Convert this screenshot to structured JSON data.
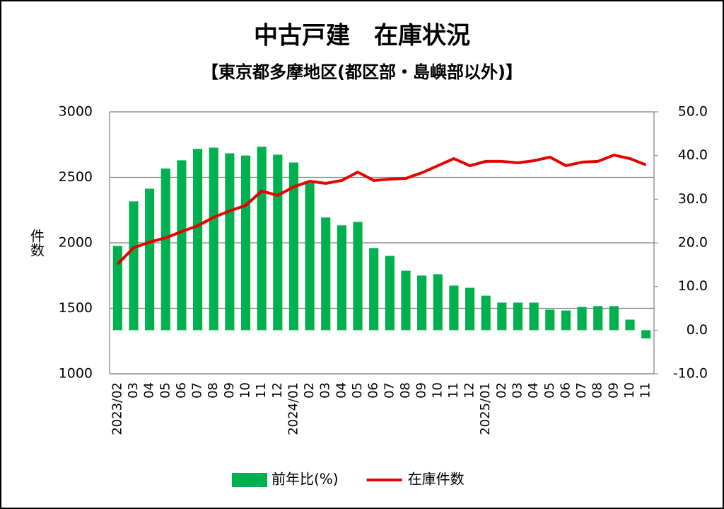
{
  "chart_data": {
    "type": "combo",
    "title": "中古戸建　在庫状況",
    "subtitle": "【東京都多摩地区(都区部・島嶼部以外)】",
    "ylabel": "件数",
    "categories": [
      "2023/02",
      "03",
      "04",
      "05",
      "06",
      "07",
      "08",
      "09",
      "10",
      "11",
      "12",
      "2024/01",
      "02",
      "03",
      "04",
      "05",
      "06",
      "07",
      "08",
      "09",
      "10",
      "11",
      "12",
      "2025/01",
      "02",
      "03",
      "04",
      "05",
      "06",
      "07",
      "08",
      "09",
      "10",
      "11"
    ],
    "series": [
      {
        "name": "前年比(%)",
        "type": "bar",
        "axis": "y2",
        "color": "#00b050",
        "values": [
          19.3,
          29.5,
          32.4,
          37.0,
          38.9,
          41.5,
          41.8,
          40.5,
          40.0,
          42.0,
          40.2,
          38.4,
          33.7,
          25.8,
          24.0,
          24.8,
          18.8,
          17.0,
          13.6,
          12.5,
          12.8,
          10.2,
          9.7,
          7.9,
          6.3,
          6.3,
          6.3,
          4.7,
          4.5,
          5.3,
          5.5,
          5.5,
          2.4,
          -1.9
        ]
      },
      {
        "name": "在庫件数",
        "type": "line",
        "axis": "y",
        "color": "#e60000",
        "values": [
          1838,
          1962,
          2005,
          2038,
          2086,
          2130,
          2195,
          2243,
          2286,
          2395,
          2362,
          2427,
          2470,
          2454,
          2476,
          2540,
          2476,
          2486,
          2492,
          2535,
          2589,
          2643,
          2589,
          2622,
          2622,
          2611,
          2627,
          2654,
          2589,
          2616,
          2622,
          2670,
          2643,
          2595
        ]
      }
    ],
    "ylim": [
      1000,
      3000
    ],
    "yticks": [
      1000,
      1500,
      2000,
      2500,
      3000
    ],
    "y2lim": [
      -10,
      50
    ],
    "y2ticks": [
      {
        "value": -10,
        "label": "-10.0"
      },
      {
        "value": 0,
        "label": "0.0"
      },
      {
        "value": 10,
        "label": "10.0"
      },
      {
        "value": 20,
        "label": "20.0"
      },
      {
        "value": 30,
        "label": "30.0"
      },
      {
        "value": 40,
        "label": "40.0"
      },
      {
        "value": 50,
        "label": "50.0"
      }
    ],
    "grid": true,
    "legend": "bottom"
  }
}
